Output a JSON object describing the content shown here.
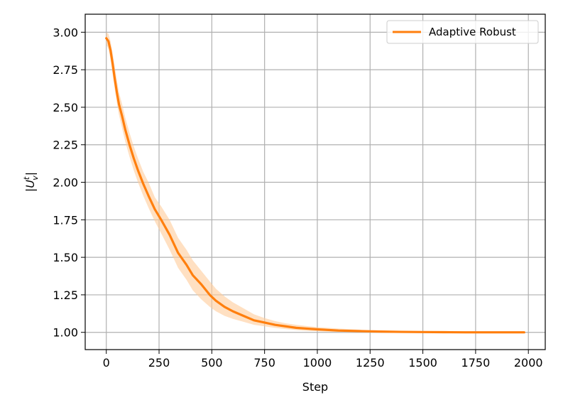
{
  "chart_data": {
    "type": "line",
    "xlabel": "Step",
    "ylabel": "|U",
    "ylabel_sup": "t",
    "ylabel_sub": "v",
    "ylabel_end": "|",
    "xlim": [
      -100,
      2080
    ],
    "ylim": [
      0.885,
      3.12
    ],
    "xticks": [
      0,
      250,
      500,
      750,
      1000,
      1250,
      1500,
      1750,
      2000
    ],
    "xtick_labels": [
      "0",
      "250",
      "500",
      "750",
      "1000",
      "1250",
      "1500",
      "1750",
      "2000"
    ],
    "yticks": [
      1.0,
      1.25,
      1.5,
      1.75,
      2.0,
      2.25,
      2.5,
      2.75,
      3.0
    ],
    "ytick_labels": [
      "1.00",
      "1.25",
      "1.50",
      "1.75",
      "2.00",
      "2.25",
      "2.50",
      "2.75",
      "3.00"
    ],
    "grid": true,
    "legend_position": "top-right",
    "series": [
      {
        "name": "Adaptive Robust",
        "color": "#ff7f0e",
        "band_color": "#ffcc99",
        "x": [
          0,
          10,
          20,
          30,
          40,
          50,
          60,
          75,
          90,
          110,
          130,
          150,
          175,
          200,
          230,
          260,
          300,
          340,
          380,
          410,
          450,
          490,
          520,
          560,
          600,
          650,
          700,
          750,
          800,
          850,
          900,
          950,
          1000,
          1100,
          1200,
          1300,
          1400,
          1500,
          1600,
          1700,
          1800,
          1900,
          1980
        ],
        "y": [
          2.96,
          2.94,
          2.88,
          2.79,
          2.69,
          2.6,
          2.52,
          2.44,
          2.35,
          2.25,
          2.16,
          2.08,
          1.99,
          1.91,
          1.82,
          1.75,
          1.65,
          1.53,
          1.45,
          1.38,
          1.32,
          1.25,
          1.21,
          1.17,
          1.14,
          1.11,
          1.08,
          1.065,
          1.05,
          1.04,
          1.03,
          1.025,
          1.02,
          1.012,
          1.008,
          1.005,
          1.003,
          1.002,
          1.001,
          1.0,
          1.0,
          1.0,
          1.0
        ],
        "lower": [
          2.92,
          2.89,
          2.82,
          2.72,
          2.62,
          2.53,
          2.45,
          2.36,
          2.27,
          2.17,
          2.08,
          2.0,
          1.91,
          1.83,
          1.74,
          1.66,
          1.55,
          1.43,
          1.35,
          1.28,
          1.22,
          1.17,
          1.14,
          1.11,
          1.09,
          1.07,
          1.05,
          1.04,
          1.03,
          1.022,
          1.015,
          1.01,
          1.007,
          1.003,
          1.001,
          1.0,
          0.999,
          0.998,
          0.998,
          0.998,
          0.998,
          0.998,
          0.998
        ],
        "upper": [
          3.0,
          2.99,
          2.94,
          2.86,
          2.77,
          2.68,
          2.6,
          2.52,
          2.43,
          2.33,
          2.24,
          2.16,
          2.07,
          2.0,
          1.9,
          1.84,
          1.75,
          1.63,
          1.55,
          1.48,
          1.41,
          1.34,
          1.29,
          1.24,
          1.2,
          1.16,
          1.12,
          1.095,
          1.075,
          1.06,
          1.05,
          1.042,
          1.035,
          1.025,
          1.018,
          1.012,
          1.008,
          1.005,
          1.003,
          1.002,
          1.002,
          1.002,
          1.002
        ]
      }
    ]
  }
}
